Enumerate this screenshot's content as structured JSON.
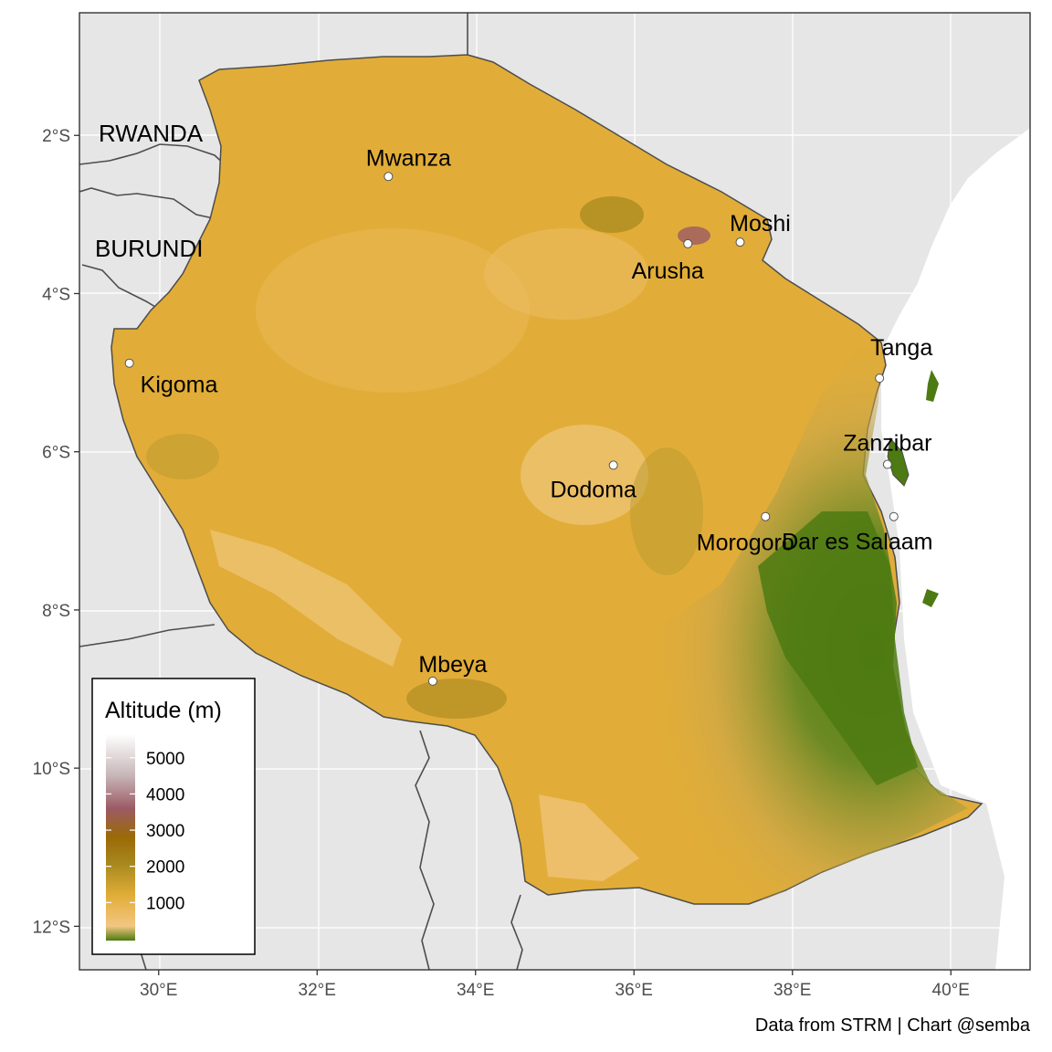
{
  "map": {
    "country_labels": [
      "RWANDA",
      "BURUNDI"
    ],
    "cities": [
      {
        "name": "Mwanza",
        "lon": 32.9,
        "lat": -2.52
      },
      {
        "name": "Moshi",
        "lon": 37.34,
        "lat": -3.35
      },
      {
        "name": "Arusha",
        "lon": 36.68,
        "lat": -3.37
      },
      {
        "name": "Kigoma",
        "lon": 29.63,
        "lat": -4.88
      },
      {
        "name": "Tanga",
        "lon": 39.1,
        "lat": -5.07
      },
      {
        "name": "Zanzibar",
        "lon": 39.2,
        "lat": -6.16
      },
      {
        "name": "Dodoma",
        "lon": 35.74,
        "lat": -6.17
      },
      {
        "name": "Morogoro",
        "lon": 37.66,
        "lat": -6.82
      },
      {
        "name": "Dar es Salaam",
        "lon": 39.28,
        "lat": -6.82
      },
      {
        "name": "Mbeya",
        "lon": 33.46,
        "lat": -8.9
      }
    ],
    "x_ticks": [
      "30°E",
      "32°E",
      "34°E",
      "36°E",
      "38°E",
      "40°E"
    ],
    "y_ticks": [
      "2°S",
      "4°S",
      "6°S",
      "8°S",
      "10°S",
      "12°S"
    ],
    "x_range": [
      29.0,
      41.0
    ],
    "y_range": [
      -12.55,
      -0.45
    ]
  },
  "legend": {
    "title": "Altitude (m)",
    "ticks": [
      "5000",
      "4000",
      "3000",
      "2000",
      "1000"
    ],
    "colors": [
      "#4d7a12",
      "#f2c682",
      "#e1ad38",
      "#a8891e",
      "#9a6a06",
      "#9c5a64",
      "#c7b6b8",
      "#ffffff"
    ]
  },
  "caption": "Data from STRM | Chart @semba"
}
